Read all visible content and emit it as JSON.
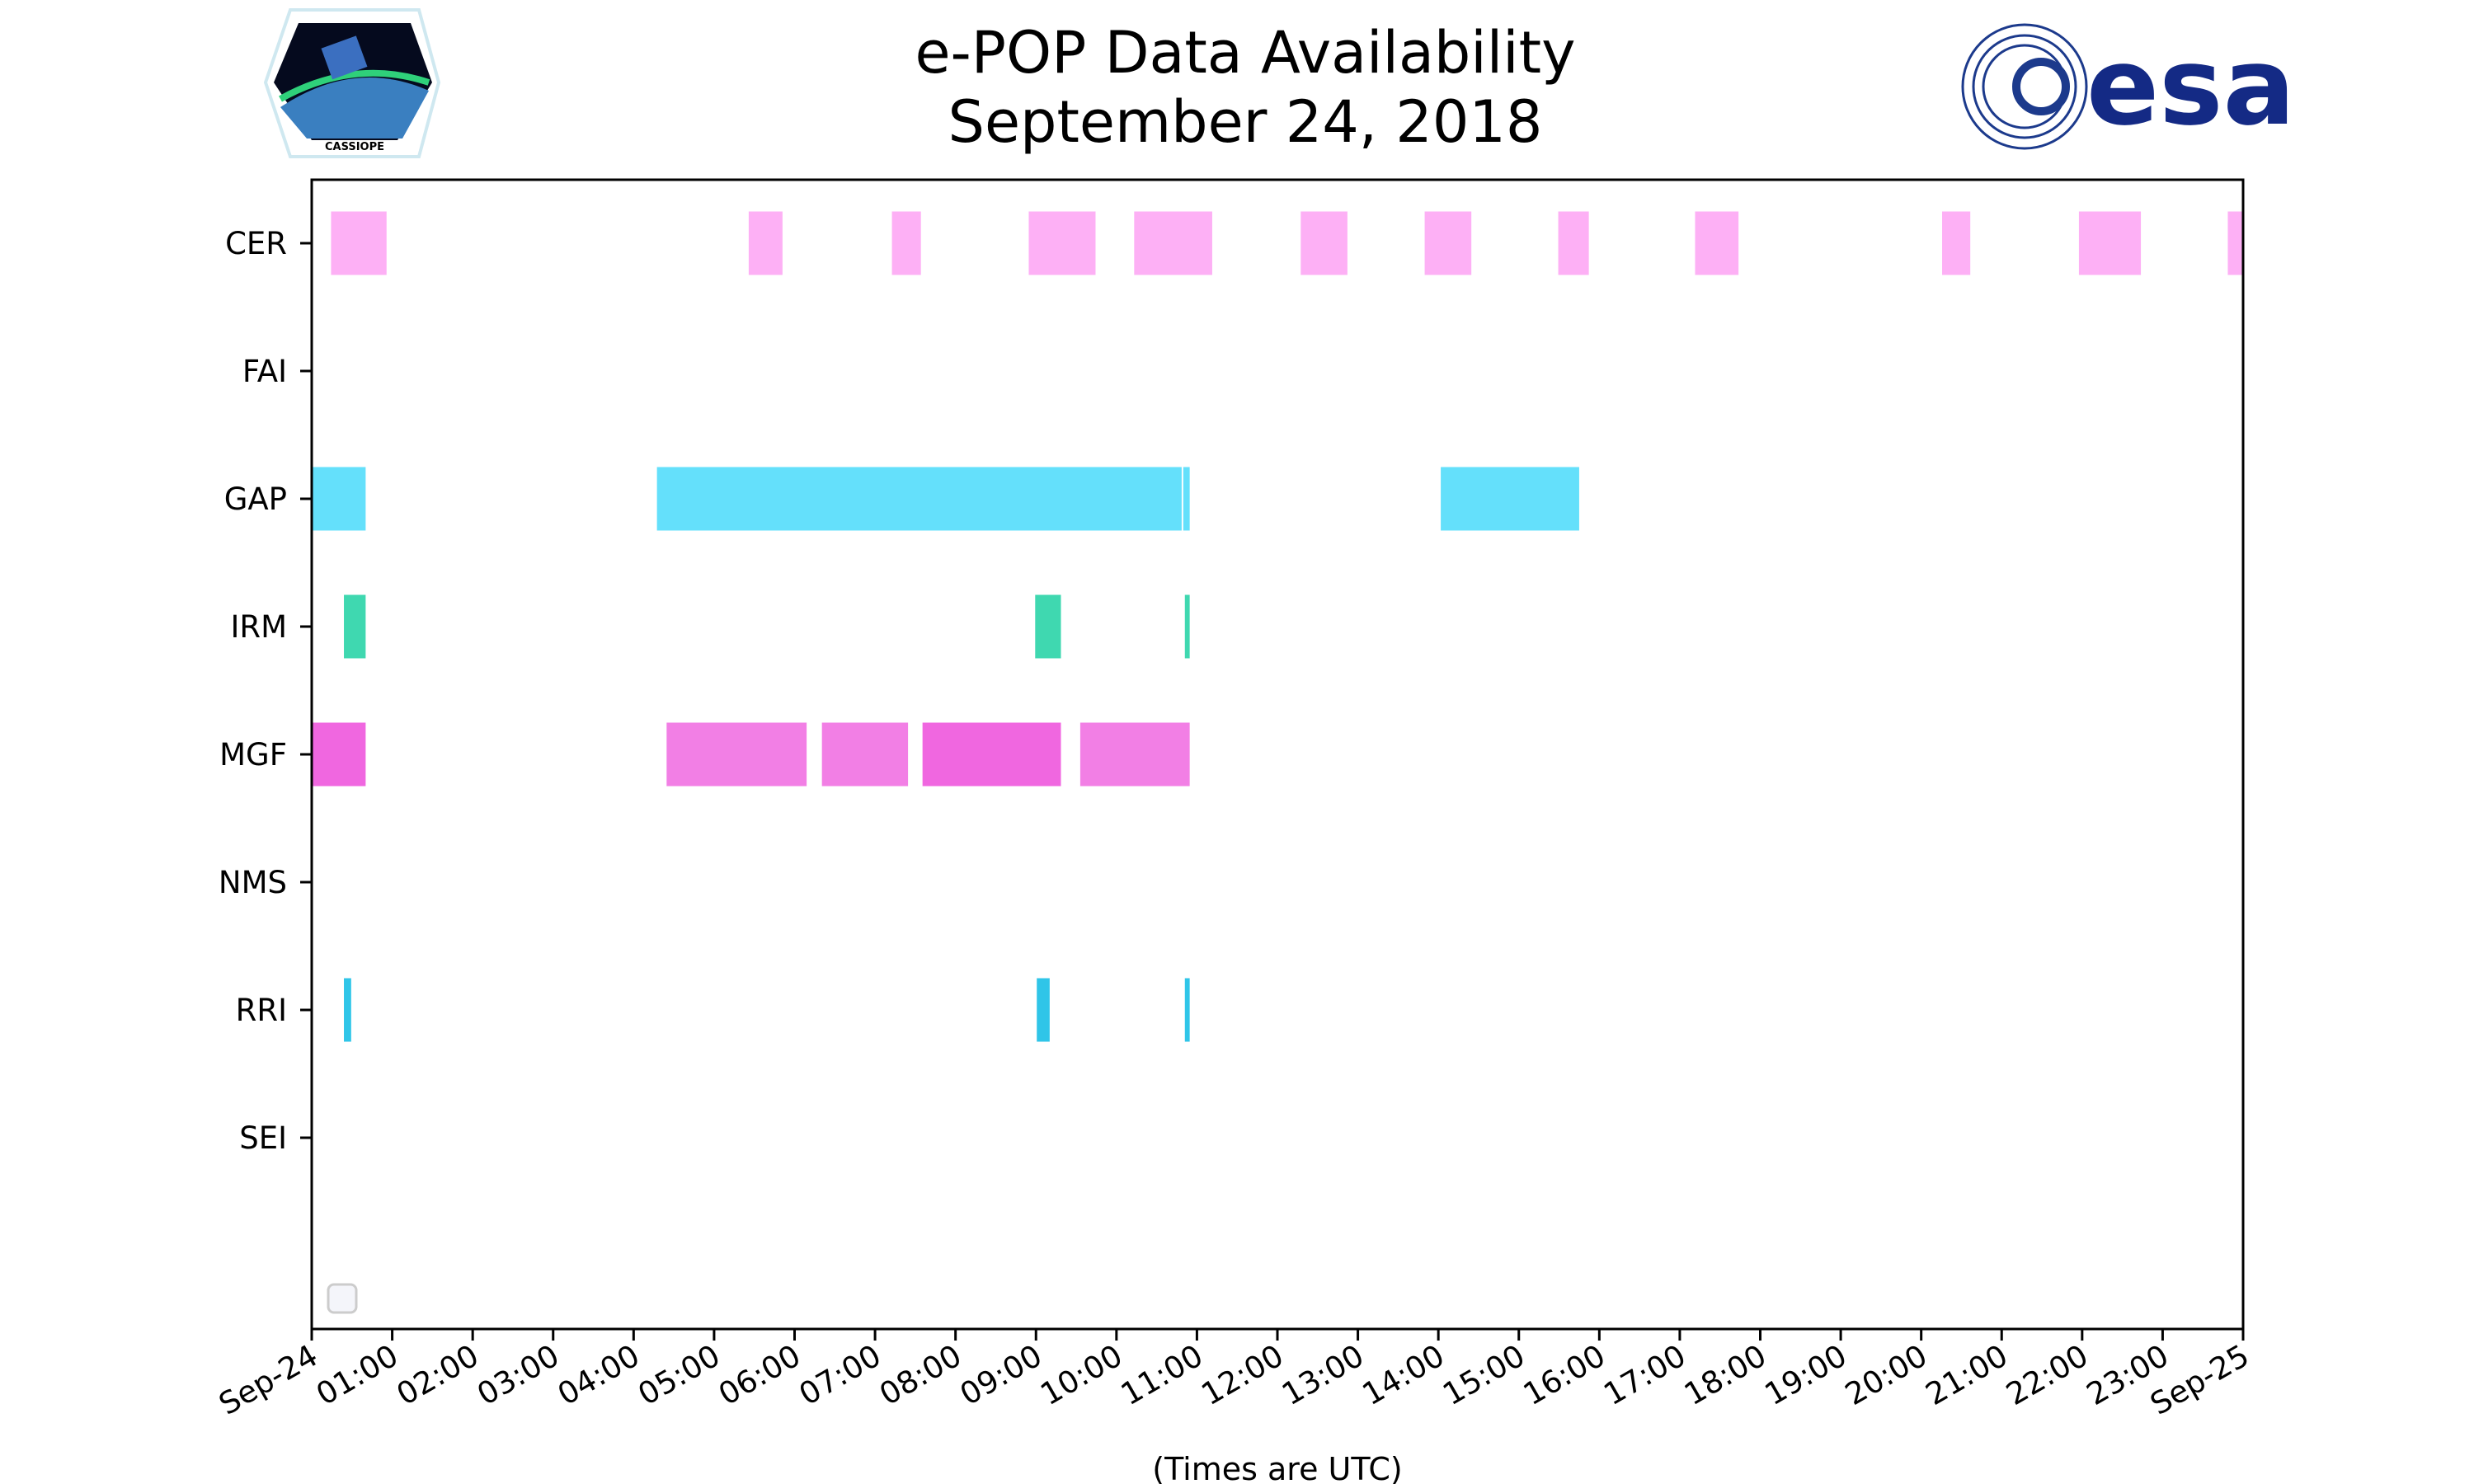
{
  "chart_data": {
    "type": "timeline",
    "title": "e-POP Data Availability",
    "subtitle": "September 24, 2018",
    "xlabel": "(Times are UTC)",
    "xlim_hours": [
      0,
      24
    ],
    "x_tick_labels": [
      "Sep-24",
      "01:00",
      "02:00",
      "03:00",
      "04:00",
      "05:00",
      "06:00",
      "07:00",
      "08:00",
      "09:00",
      "10:00",
      "11:00",
      "12:00",
      "13:00",
      "14:00",
      "15:00",
      "16:00",
      "17:00",
      "18:00",
      "19:00",
      "20:00",
      "21:00",
      "22:00",
      "23:00",
      "Sep-25"
    ],
    "categories": [
      "CER",
      "FAI",
      "GAP",
      "IRM",
      "MGF",
      "NMS",
      "RRI",
      "SEI"
    ],
    "legend": "bottom-left (empty)",
    "series": [
      {
        "name": "CER",
        "color": "#fdb0f5",
        "intervals": [
          [
            0.24,
            0.93
          ],
          [
            5.43,
            5.85
          ],
          [
            7.21,
            7.57
          ],
          [
            8.91,
            9.74
          ],
          [
            10.22,
            11.19
          ],
          [
            12.29,
            12.87
          ],
          [
            13.83,
            14.41
          ],
          [
            15.49,
            15.87
          ],
          [
            17.19,
            17.73
          ],
          [
            20.26,
            20.61
          ],
          [
            21.96,
            22.73
          ],
          [
            23.81,
            24
          ]
        ]
      },
      {
        "name": "FAI",
        "color": "#cccccc",
        "intervals": []
      },
      {
        "name": "GAP",
        "color": "#64e0fb",
        "intervals": [
          [
            0,
            0.67
          ],
          [
            4.29,
            10.81
          ],
          [
            10.83,
            10.91
          ],
          [
            14.03,
            15.75
          ]
        ]
      },
      {
        "name": "IRM",
        "color": "#3fd8b0",
        "intervals": [
          [
            0.4,
            0.67
          ],
          [
            8.99,
            9.31
          ],
          [
            10.85,
            10.91
          ]
        ]
      },
      {
        "name": "MGF",
        "color": "#f27fe5",
        "alt_color": "#f067e0",
        "intervals": [
          [
            0,
            0.67,
            "alt"
          ],
          [
            4.41,
            6.15
          ],
          [
            6.34,
            7.41
          ],
          [
            7.59,
            9.31,
            "alt"
          ],
          [
            9.55,
            10.91
          ]
        ]
      },
      {
        "name": "NMS",
        "color": "#cccccc",
        "intervals": []
      },
      {
        "name": "RRI",
        "color": "#2fc5e8",
        "intervals": [
          [
            0.4,
            0.49
          ],
          [
            9.01,
            9.17
          ],
          [
            10.85,
            10.91
          ]
        ]
      },
      {
        "name": "SEI",
        "color": "#cccccc",
        "intervals": []
      }
    ]
  },
  "logos": {
    "left": "CASSIOPE",
    "right": "esa"
  }
}
